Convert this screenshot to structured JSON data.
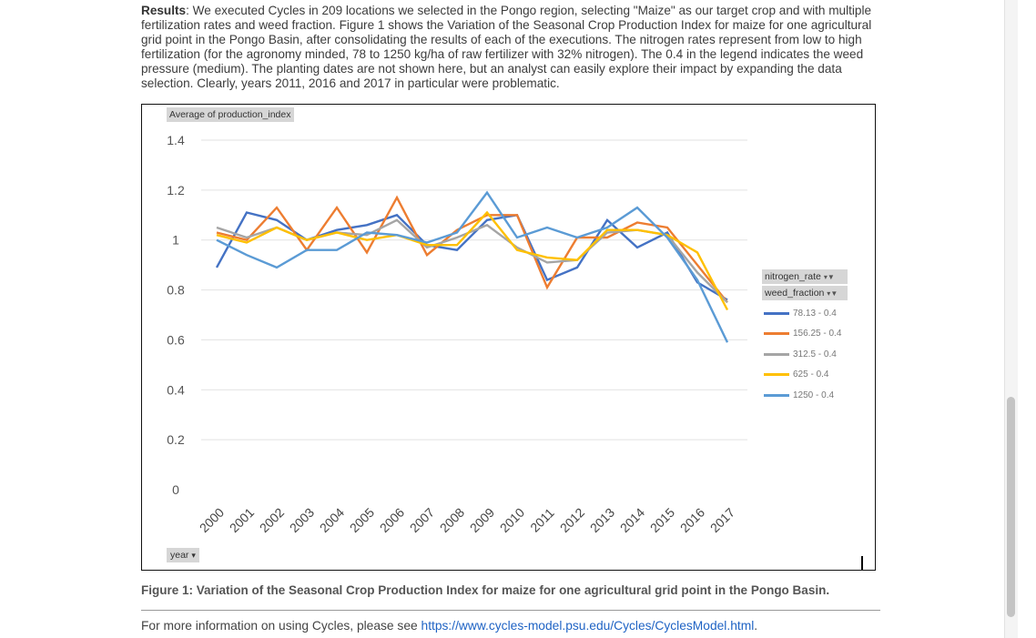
{
  "results": {
    "lead": "Results",
    "text": ": We executed Cycles in 209 locations we selected in the Pongo region, selecting \"Maize\" as our target crop and with multiple fertilization rates and weed fraction. Figure 1 shows the Variation of the Seasonal Crop Production Index for maize for one agricultural grid point in the Pongo Basin, after consolidating the results of each of the executions. The nitrogen rates represent from low to high fertilization (for the agronomy minded, 78 to 1250 kg/ha of raw fertilizer with 32% nitrogen). The 0.4 in the legend indicates the weed pressure (medium). The planting dates are not shown here, but an analyst can easily explore their impact by expanding the data selection. Clearly, years 2011, 2016 and 2017 in particular were problematic."
  },
  "pivot": {
    "value_field": "Average of production_index",
    "row_field": "year",
    "row_field_arrow": "▾",
    "legend_field_1": "nitrogen_rate",
    "legend_field_2": "weed_fraction",
    "filter_icon": "▾▼"
  },
  "chart_data": {
    "type": "line",
    "title": "",
    "xlabel": "year",
    "ylabel": "Average of production_index",
    "ylim": [
      0,
      1.4
    ],
    "yticks": [
      "0",
      "0.2",
      "0.4",
      "0.6",
      "0.8",
      "1",
      "1.2",
      "1.4"
    ],
    "ytick_values": [
      0,
      0.2,
      0.4,
      0.6,
      0.8,
      1,
      1.2,
      1.4
    ],
    "categories": [
      "2000",
      "2001",
      "2002",
      "2003",
      "2004",
      "2005",
      "2006",
      "2007",
      "2008",
      "2009",
      "2010",
      "2011",
      "2012",
      "2013",
      "2014",
      "2015",
      "2016",
      "2017"
    ],
    "series": [
      {
        "name": "78.13 - 0.4",
        "color": "#4472c4",
        "values": [
          0.89,
          1.11,
          1.08,
          1.0,
          1.04,
          1.06,
          1.1,
          0.98,
          0.96,
          1.08,
          1.1,
          0.84,
          0.89,
          1.08,
          0.97,
          1.03,
          0.83,
          0.76
        ]
      },
      {
        "name": "156.25 - 0.4",
        "color": "#ed7d31",
        "values": [
          1.03,
          1.0,
          1.13,
          0.96,
          1.13,
          0.95,
          1.17,
          0.94,
          1.04,
          1.1,
          1.1,
          0.81,
          1.01,
          1.01,
          1.07,
          1.05,
          0.9,
          0.75
        ]
      },
      {
        "name": "312.5 - 0.4",
        "color": "#a5a5a5",
        "values": [
          1.05,
          1.01,
          1.05,
          1.0,
          1.03,
          1.02,
          1.08,
          0.97,
          1.01,
          1.06,
          0.97,
          0.91,
          0.92,
          1.03,
          1.04,
          1.02,
          0.87,
          0.75
        ]
      },
      {
        "name": "625 - 0.4",
        "color": "#ffc000",
        "values": [
          1.02,
          0.99,
          1.05,
          1.0,
          1.03,
          1.0,
          1.02,
          0.98,
          0.98,
          1.11,
          0.96,
          0.93,
          0.92,
          1.04,
          1.04,
          1.02,
          0.95,
          0.72
        ]
      },
      {
        "name": "1250 - 0.4",
        "color": "#5b9bd5",
        "values": [
          1.0,
          0.94,
          0.89,
          0.96,
          0.96,
          1.03,
          1.02,
          0.99,
          1.03,
          1.19,
          1.01,
          1.05,
          1.01,
          1.05,
          1.13,
          1.01,
          0.84,
          0.59
        ]
      }
    ],
    "grid": true,
    "legend_position": "right"
  },
  "caption": "Figure 1: Variation of the Seasonal Crop Production Index for maize for one agricultural grid point in the Pongo Basin.",
  "more_info": {
    "text": "For more information on using Cycles, please see ",
    "link": "https://www.cycles-model.psu.edu/Cycles/CyclesModel.html",
    "suffix": "."
  }
}
